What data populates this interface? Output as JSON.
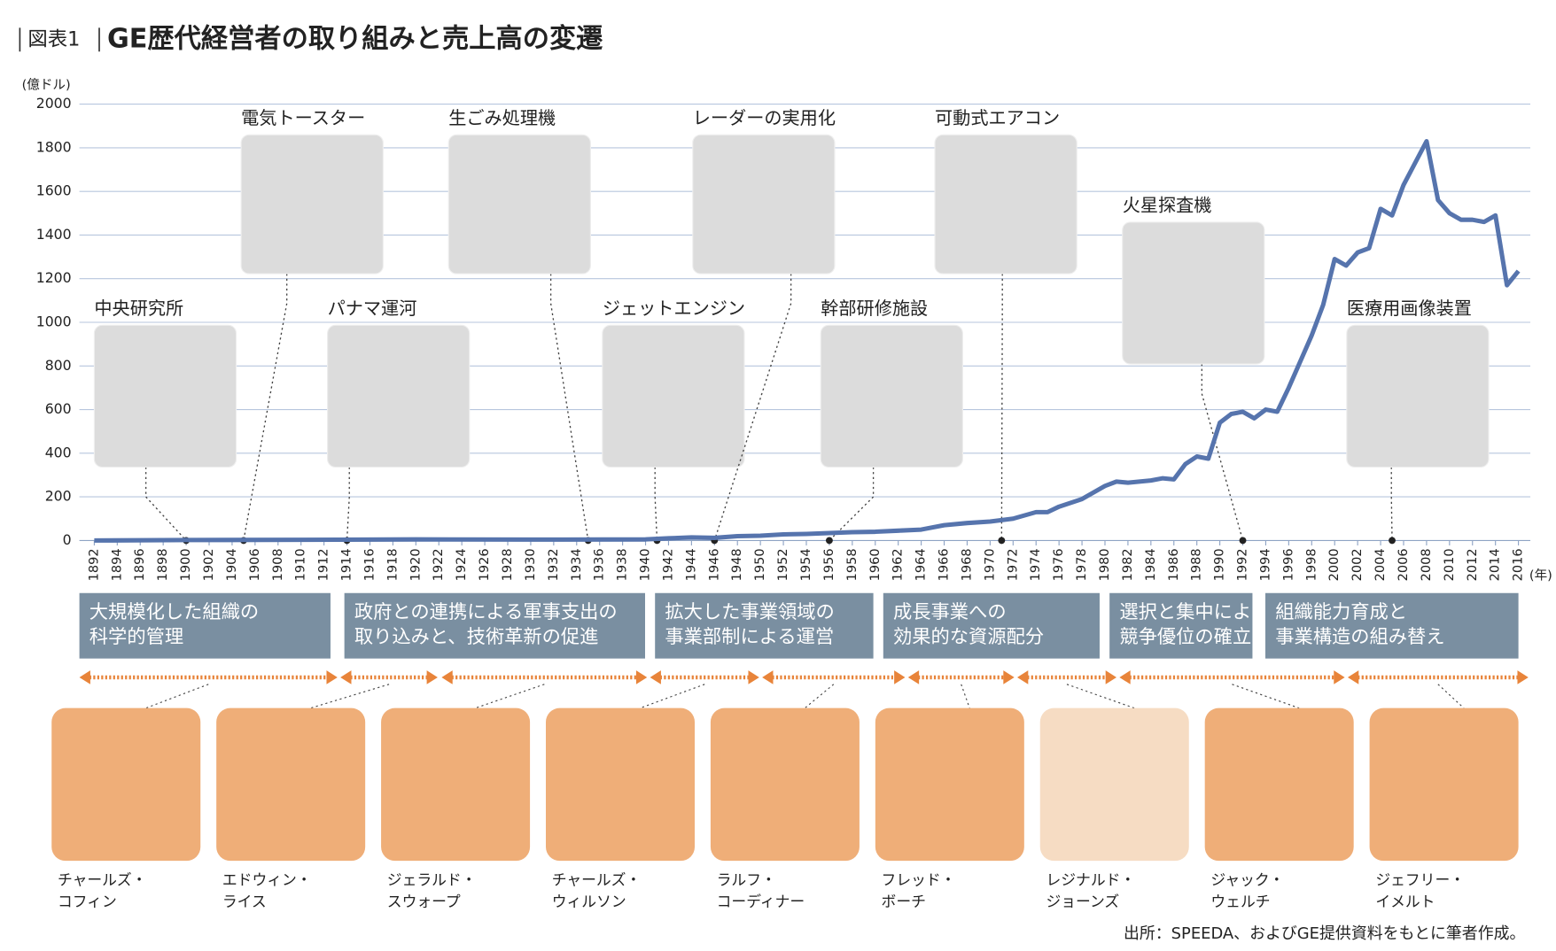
{
  "header": {
    "figure_label": "図表1",
    "title": "GE歴代経営者の取り組みと売上高の変遷"
  },
  "chart_data": {
    "type": "line",
    "y_unit": "(億ドル)",
    "x_unit": "(年)",
    "color": "#5674ad",
    "grid": true,
    "xlim": [
      1892,
      2016
    ],
    "ylim": [
      0,
      2000
    ],
    "yticks": [
      0,
      200,
      400,
      600,
      800,
      1000,
      1200,
      1400,
      1600,
      1800,
      2000
    ],
    "xticks": [
      1892,
      1894,
      1896,
      1898,
      1900,
      1902,
      1904,
      1906,
      1908,
      1910,
      1912,
      1914,
      1916,
      1918,
      1920,
      1922,
      1924,
      1926,
      1928,
      1930,
      1932,
      1934,
      1936,
      1938,
      1940,
      1942,
      1944,
      1946,
      1948,
      1950,
      1952,
      1954,
      1956,
      1958,
      1960,
      1962,
      1964,
      1966,
      1968,
      1970,
      1972,
      1974,
      1976,
      1978,
      1980,
      1982,
      1984,
      1986,
      1988,
      1990,
      1992,
      1994,
      1996,
      1998,
      2000,
      2002,
      2004,
      2006,
      2008,
      2010,
      2012,
      2014,
      2016
    ],
    "x": [
      1892,
      1900,
      1910,
      1920,
      1930,
      1940,
      1942,
      1944,
      1946,
      1948,
      1950,
      1952,
      1954,
      1956,
      1958,
      1960,
      1962,
      1964,
      1966,
      1968,
      1970,
      1972,
      1974,
      1975,
      1976,
      1978,
      1980,
      1981,
      1982,
      1984,
      1985,
      1986,
      1987,
      1988,
      1989,
      1990,
      1991,
      1992,
      1993,
      1994,
      1995,
      1996,
      1997,
      1998,
      1999,
      2000,
      2001,
      2002,
      2003,
      2004,
      2005,
      2006,
      2007,
      2008,
      2009,
      2010,
      2011,
      2012,
      2013,
      2014,
      2015,
      2016
    ],
    "values": [
      0,
      2,
      3,
      5,
      4,
      5,
      10,
      14,
      12,
      20,
      22,
      28,
      30,
      34,
      38,
      40,
      45,
      50,
      70,
      80,
      87,
      100,
      130,
      130,
      155,
      190,
      250,
      270,
      265,
      275,
      285,
      280,
      350,
      385,
      375,
      540,
      580,
      590,
      560,
      600,
      590,
      700,
      820,
      940,
      1080,
      1290,
      1260,
      1320,
      1340,
      1520,
      1490,
      1630,
      1730,
      1830,
      1560,
      1500,
      1470,
      1470,
      1460,
      1490,
      1170,
      1235
    ],
    "annotations": [
      {
        "label": "中央研究所",
        "x": 1900
      },
      {
        "label": "電気トースター",
        "x": 1905
      },
      {
        "label": "パナマ運河",
        "x": 1914
      },
      {
        "label": "生ごみ処理機",
        "x": 1935
      },
      {
        "label": "ジェットエンジン",
        "x": 1941
      },
      {
        "label": "レーダーの実用化",
        "x": 1946
      },
      {
        "label": "幹部研修施設",
        "x": 1956
      },
      {
        "label": "可動式エアコン",
        "x": 1971
      },
      {
        "label": "火星探査機",
        "x": 1992
      },
      {
        "label": "医療用画像装置",
        "x": 2005
      }
    ]
  },
  "eras": [
    {
      "lines": [
        "大規模化した組織の",
        "科学的管理"
      ]
    },
    {
      "lines": [
        "政府との連携による軍事支出の",
        "取り込みと、技術革新の促進"
      ]
    },
    {
      "lines": [
        "拡大した事業領域の",
        "事業部制による運営"
      ]
    },
    {
      "lines": [
        "成長事業への",
        "効果的な資源配分"
      ]
    },
    {
      "lines": [
        "選択と集中による",
        "競争優位の確立"
      ]
    },
    {
      "lines": [
        "組織能力育成と",
        "事業構造の組み替え"
      ]
    }
  ],
  "leaders": [
    {
      "lines": [
        "チャールズ・",
        "コフィン"
      ]
    },
    {
      "lines": [
        "エドウィン・",
        "ライス"
      ]
    },
    {
      "lines": [
        "ジェラルド・",
        "スウォープ"
      ]
    },
    {
      "lines": [
        "チャールズ・",
        "ウィルソン"
      ]
    },
    {
      "lines": [
        "ラルフ・",
        "コーディナー"
      ]
    },
    {
      "lines": [
        "フレッド・",
        "ボーチ"
      ]
    },
    {
      "lines": [
        "レジナルド・",
        "ジョーンズ"
      ]
    },
    {
      "lines": [
        "ジャック・",
        "ウェルチ"
      ]
    },
    {
      "lines": [
        "ジェフリー・",
        "イメルト"
      ]
    }
  ],
  "source": "出所：SPEEDA、およびGE提供資料をもとに筆者作成。"
}
